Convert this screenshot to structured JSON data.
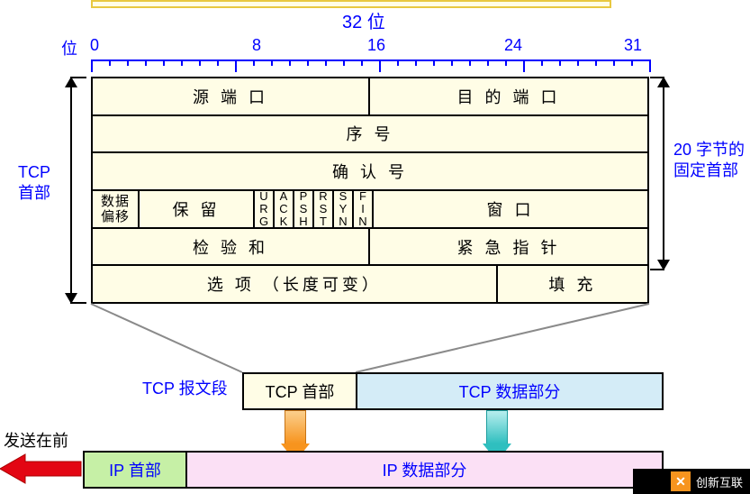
{
  "colors": {
    "bit_label": "#0000ff",
    "cream_fill": "#fffde6",
    "cream_border": "#e8c840",
    "tcp_blue_fill": "#d4ecf7",
    "tcp_blue_border": "#3399cc",
    "ip_green_fill": "#c6f0a6",
    "ip_green_border": "#6fb53a",
    "ip_pink_fill": "#fbe0f5",
    "ip_pink_border": "#cc6fb5",
    "orange_arrow": "#f7941e",
    "teal_arrow": "#2fbfbf",
    "red_arrow": "#e30613",
    "black": "#000000"
  },
  "ruler": {
    "title": "32 位",
    "unit_prefix": "位",
    "ticks": [
      "0",
      "8",
      "16",
      "24",
      "31"
    ]
  },
  "side_left": "TCP\n首部",
  "side_right": "20 字节的\n固定首部",
  "tcp_header": {
    "row1": {
      "left": "源 端 口",
      "right": "目 的 端 口"
    },
    "row2": "序   号",
    "row3": "确   认   号",
    "row4": {
      "offset": "数据\n偏移",
      "reserved": "保 留",
      "flags": [
        "URG",
        "ACK",
        "PSH",
        "RST",
        "SYN",
        "FIN"
      ],
      "window": "窗 口"
    },
    "row5": {
      "left": "检 验 和",
      "right": "紧 急 指 针"
    },
    "row6": {
      "left": "选 项 （长度可变）",
      "right": "填   充"
    }
  },
  "segment": {
    "label": "TCP 报文段",
    "tcp_hdr": "TCP 首部",
    "tcp_data": "TCP 数据部分"
  },
  "ip": {
    "send_label": "发送在前",
    "ip_hdr": "IP 首部",
    "ip_data": "IP 数据部分"
  },
  "logo_text": "创新互联"
}
